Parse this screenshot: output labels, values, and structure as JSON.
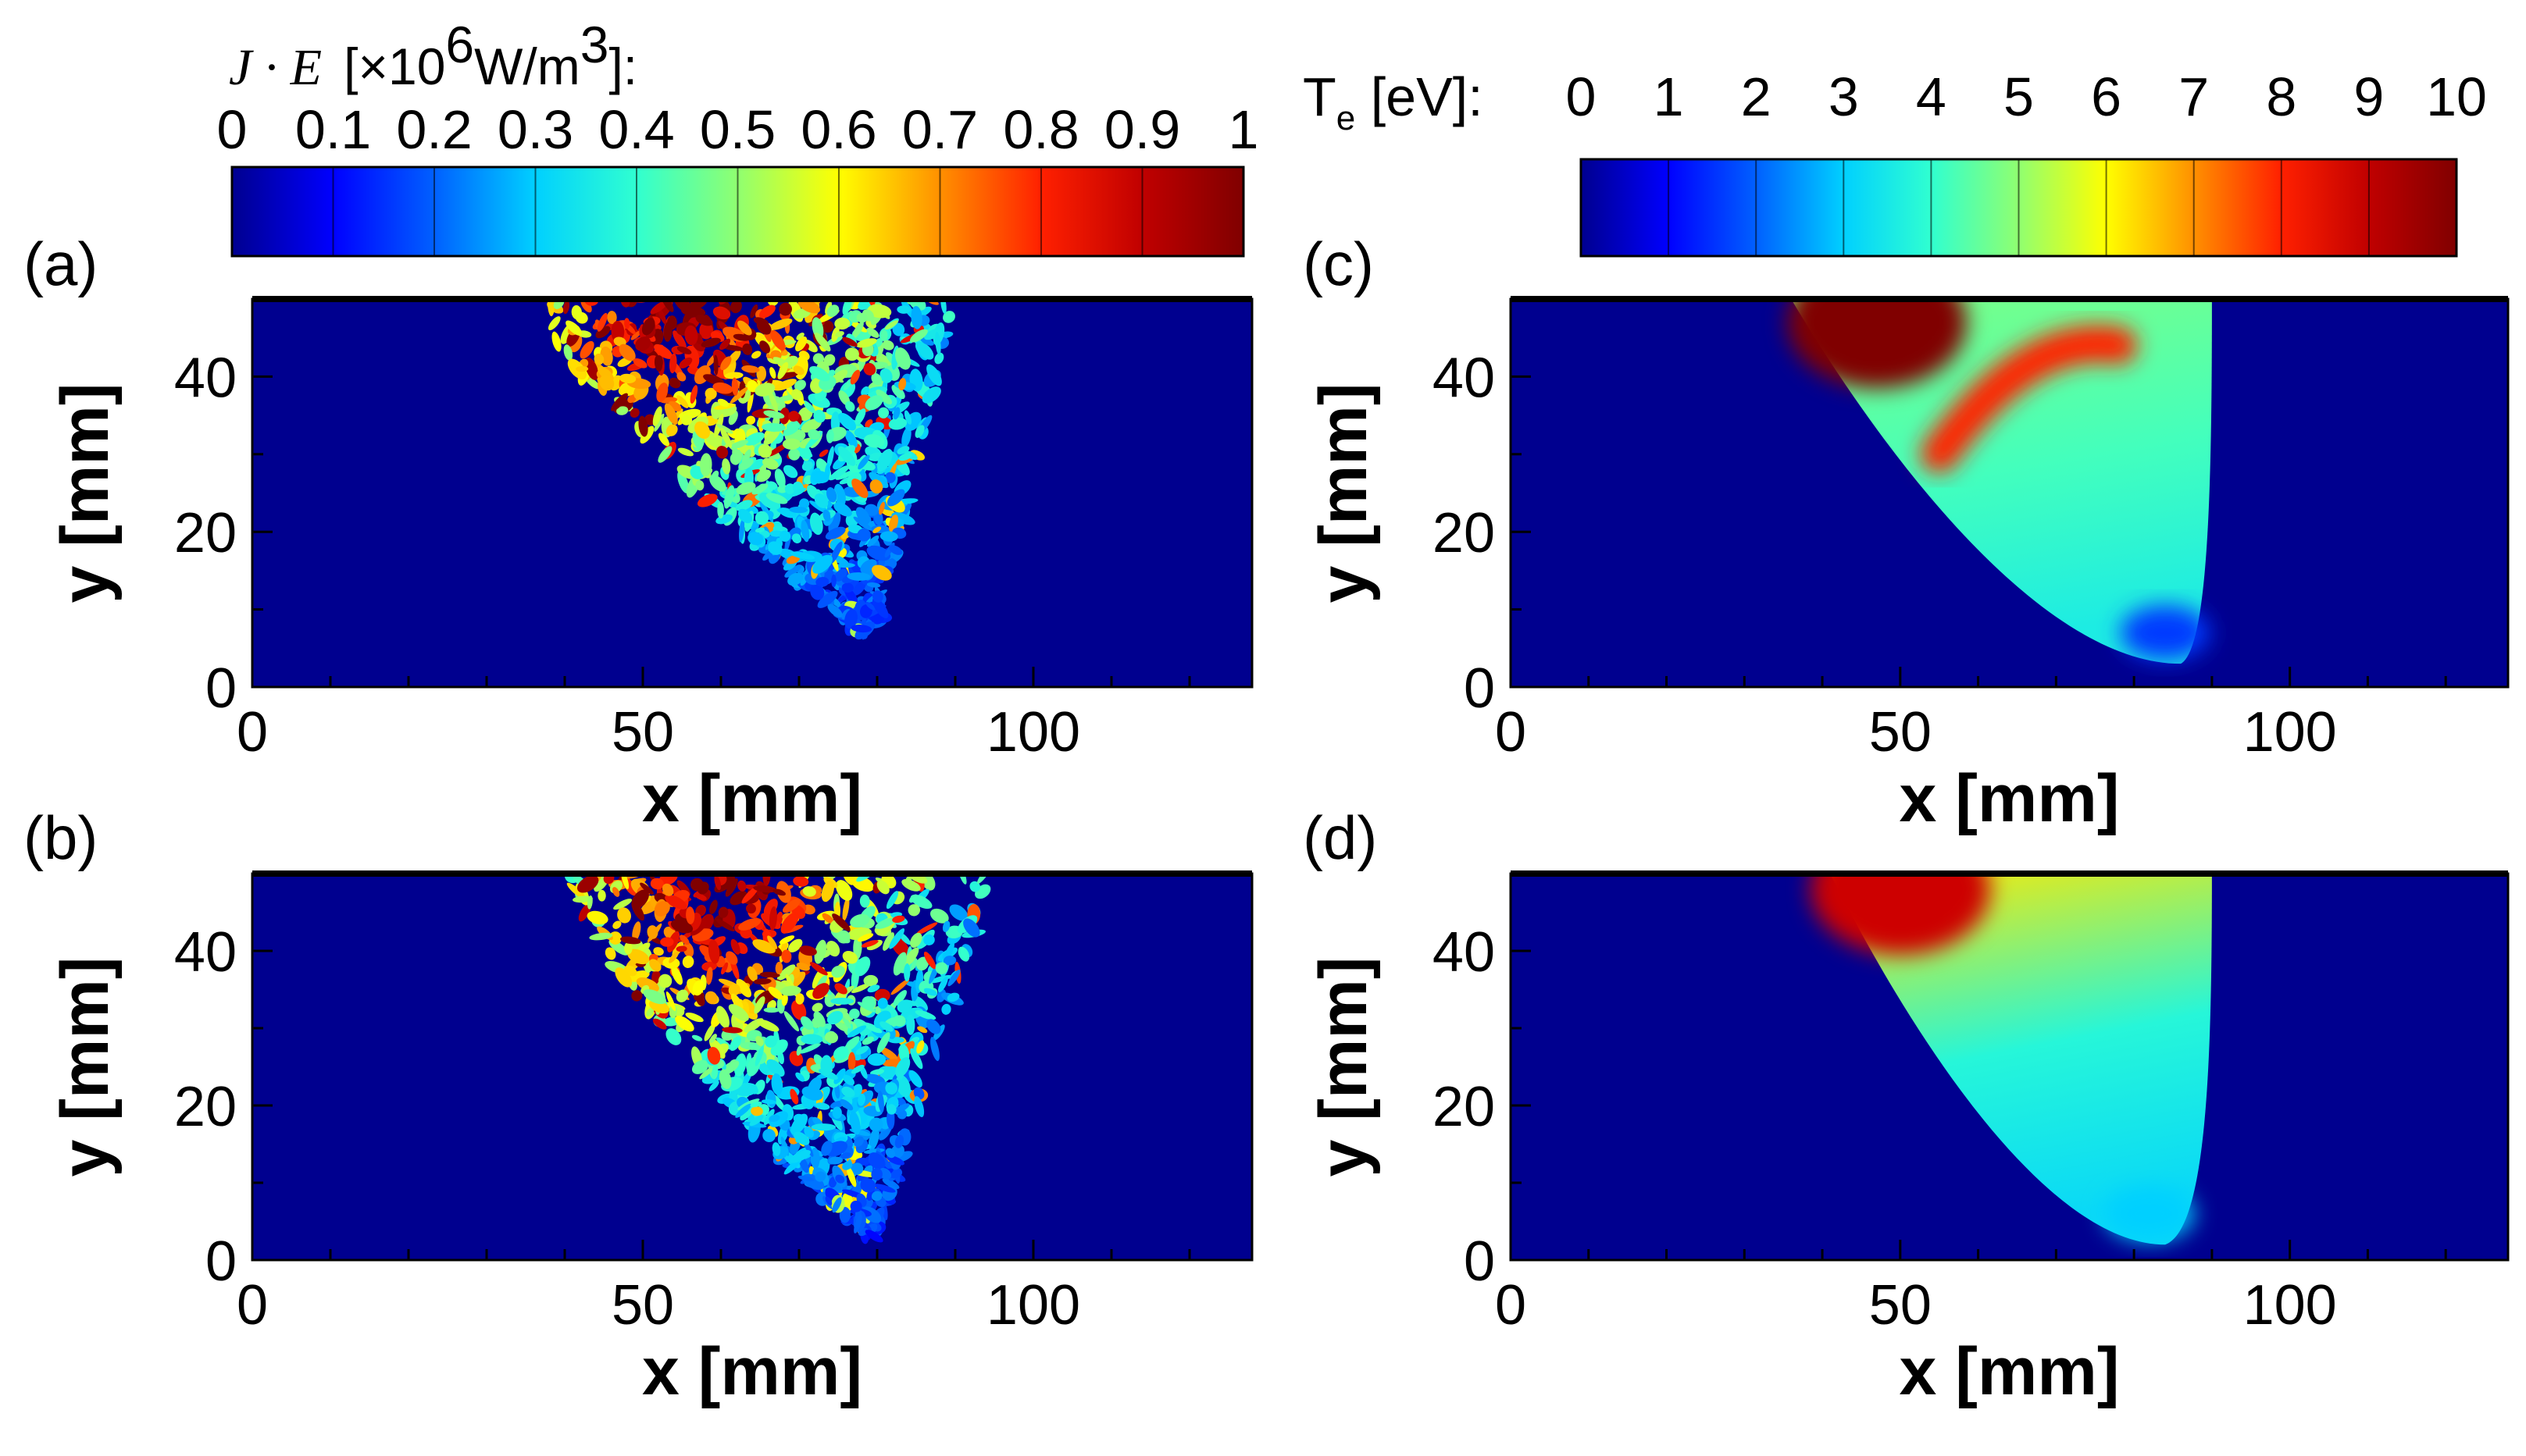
{
  "figure": {
    "colorbars": [
      {
        "id": "je",
        "title_symbol": "J · E",
        "title_units_prefix": "[×10",
        "title_exp": "6",
        "title_units_mid": "W/m",
        "title_exp2": "3",
        "title_units_suffix": "]:",
        "min": 0,
        "max": 1,
        "ticks": [
          "0",
          "0.1",
          "0.2",
          "0.3",
          "0.4",
          "0.5",
          "0.6",
          "0.7",
          "0.8",
          "0.9",
          "1"
        ]
      },
      {
        "id": "te",
        "title_main": "T",
        "title_sub": "e",
        "title_rest": " [eV]:",
        "min": 0,
        "max": 10,
        "ticks": [
          "0",
          "1",
          "2",
          "3",
          "4",
          "5",
          "6",
          "7",
          "8",
          "9",
          "10"
        ]
      }
    ],
    "colormap": [
      "#00008f",
      "#0000ff",
      "#0060ff",
      "#00d0ff",
      "#30ffd0",
      "#90ff70",
      "#ffff00",
      "#ff9000",
      "#ff2000",
      "#c00000",
      "#800000"
    ]
  },
  "chart_data": [
    {
      "type": "heatmap",
      "label": "(a)",
      "quantity": "J · E [×10^6 W/m^3]",
      "xlabel": "x [mm]",
      "ylabel": "y [mm]",
      "xlim": [
        0,
        128
      ],
      "ylim": [
        0,
        50
      ],
      "xticks": [
        0,
        50,
        100
      ],
      "yticks": [
        0,
        20,
        40
      ],
      "vmin": 0,
      "vmax": 1,
      "pattern": "filamentary",
      "plume": {
        "top_x": [
          36,
          90
        ],
        "bottom_x": 80,
        "bottom_y": 7
      },
      "hot_region": {
        "x": 55,
        "y": 49,
        "level": 1
      }
    },
    {
      "type": "heatmap",
      "label": "(b)",
      "quantity": "J · E [×10^6 W/m^3]",
      "xlabel": "x [mm]",
      "ylabel": "y [mm]",
      "xlim": [
        0,
        128
      ],
      "ylim": [
        0,
        50
      ],
      "xticks": [
        0,
        50,
        100
      ],
      "yticks": [
        0,
        20,
        40
      ],
      "vmin": 0,
      "vmax": 1,
      "pattern": "filamentary",
      "plume": {
        "top_x": [
          40,
          95
        ],
        "bottom_x": 80,
        "bottom_y": 3
      },
      "hot_region": {
        "x": 60,
        "y": 47,
        "level": 0.95
      }
    },
    {
      "type": "heatmap",
      "label": "(c)",
      "quantity": "Te [eV]",
      "xlabel": "x [mm]",
      "ylabel": "y [mm]",
      "xlim": [
        0,
        128
      ],
      "ylim": [
        0,
        50
      ],
      "xticks": [
        0,
        50,
        100
      ],
      "yticks": [
        0,
        20,
        40
      ],
      "vmin": 0,
      "vmax": 10,
      "pattern": "smooth",
      "plume": {
        "top_x": [
          36,
          90
        ],
        "bottom_x": 86,
        "bottom_y": 3
      },
      "peak": {
        "x": 47,
        "y": 47,
        "value": 10
      },
      "band": {
        "value": 8,
        "from": [
          55,
          30
        ],
        "to": [
          78,
          44
        ]
      },
      "interior_value": 4.2,
      "tip_value": 1.6
    },
    {
      "type": "heatmap",
      "label": "(d)",
      "quantity": "Te [eV]",
      "xlabel": "x [mm]",
      "ylabel": "y [mm]",
      "xlim": [
        0,
        128
      ],
      "ylim": [
        0,
        50
      ],
      "xticks": [
        0,
        50,
        100
      ],
      "yticks": [
        0,
        20,
        40
      ],
      "vmin": 0,
      "vmax": 10,
      "pattern": "smooth",
      "plume": {
        "top_x": [
          41,
          90
        ],
        "bottom_x": 84,
        "bottom_y": 2
      },
      "peak": {
        "x": 50,
        "y": 48,
        "value": 8.8
      },
      "top_value": 6.2,
      "interior_value": 3.8,
      "tip_value": 3.0
    }
  ]
}
